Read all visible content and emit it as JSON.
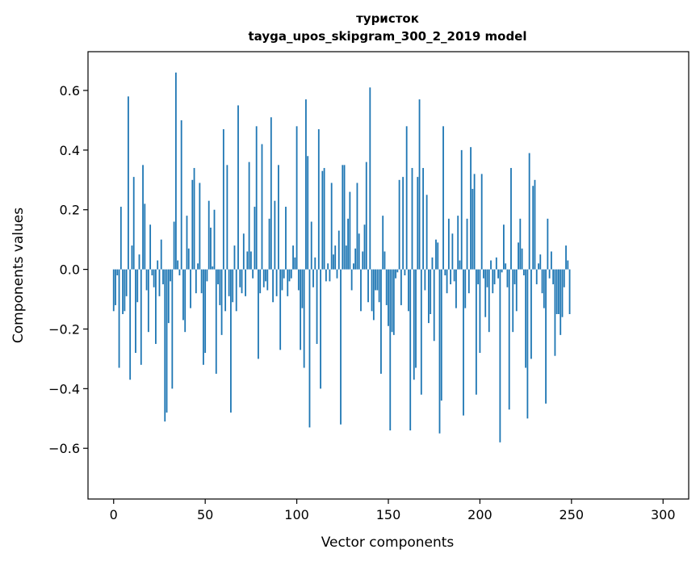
{
  "chart_data": {
    "type": "bar",
    "title_line1": "туристок",
    "title_line2": "tayga_upos_skipgram_300_2_2019 model",
    "xlabel": "Vector components",
    "ylabel": "Components values",
    "xlim": [
      -14,
      314
    ],
    "ylim": [
      -0.77,
      0.73
    ],
    "xticks": [
      0,
      50,
      100,
      150,
      200,
      250,
      300
    ],
    "xtick_labels": [
      "0",
      "50",
      "100",
      "150",
      "200",
      "250",
      "300"
    ],
    "yticks": [
      -0.6,
      -0.4,
      -0.2,
      0.0,
      0.2,
      0.4,
      0.6
    ],
    "ytick_labels": [
      "−0.6",
      "−0.4",
      "−0.2",
      "0.0",
      "0.2",
      "0.4",
      "0.6"
    ],
    "bar_color": "#1f77b4",
    "values": [
      -0.14,
      -0.12,
      -0.02,
      -0.33,
      0.21,
      -0.15,
      -0.14,
      -0.09,
      0.58,
      -0.37,
      0.08,
      0.31,
      -0.28,
      -0.11,
      0.05,
      -0.32,
      0.35,
      0.22,
      -0.07,
      -0.21,
      0.15,
      -0.02,
      -0.06,
      -0.25,
      0.03,
      -0.09,
      0.1,
      -0.05,
      -0.51,
      -0.48,
      -0.18,
      -0.04,
      -0.4,
      0.16,
      0.66,
      0.03,
      -0.02,
      0.5,
      -0.17,
      -0.21,
      0.18,
      0.07,
      -0.13,
      0.3,
      0.34,
      -0.08,
      0.02,
      0.29,
      -0.08,
      -0.32,
      -0.28,
      -0.04,
      0.23,
      0.14,
      0.01,
      0.2,
      -0.35,
      -0.05,
      -0.12,
      -0.22,
      0.47,
      -0.14,
      0.35,
      -0.09,
      -0.48,
      -0.11,
      0.08,
      -0.14,
      0.55,
      -0.06,
      -0.08,
      0.12,
      -0.09,
      0.06,
      0.36,
      0.06,
      -0.03,
      0.21,
      0.48,
      -0.3,
      -0.08,
      0.42,
      -0.06,
      -0.04,
      -0.07,
      0.17,
      0.51,
      -0.11,
      0.23,
      -0.09,
      0.35,
      -0.27,
      -0.07,
      -0.03,
      0.21,
      -0.09,
      -0.04,
      -0.03,
      0.08,
      0.04,
      0.48,
      -0.07,
      -0.27,
      -0.13,
      -0.33,
      0.57,
      0.38,
      -0.53,
      0.16,
      -0.06,
      0.04,
      -0.25,
      0.47,
      -0.4,
      0.33,
      0.34,
      -0.04,
      0.02,
      -0.04,
      0.29,
      0.05,
      0.08,
      -0.03,
      0.13,
      -0.52,
      0.35,
      0.35,
      0.08,
      0.17,
      0.26,
      -0.07,
      0.02,
      0.07,
      0.29,
      0.12,
      -0.14,
      0.06,
      0.15,
      0.36,
      -0.11,
      0.61,
      -0.14,
      -0.17,
      -0.07,
      -0.07,
      -0.11,
      -0.35,
      0.18,
      0.06,
      -0.12,
      -0.19,
      -0.54,
      -0.21,
      -0.22,
      -0.03,
      -0.01,
      0.3,
      -0.12,
      0.31,
      -0.02,
      0.48,
      -0.14,
      -0.54,
      0.34,
      -0.37,
      -0.33,
      0.31,
      0.57,
      -0.42,
      0.34,
      -0.07,
      0.25,
      -0.18,
      -0.15,
      0.04,
      -0.24,
      0.1,
      0.09,
      -0.55,
      -0.44,
      0.48,
      -0.02,
      -0.08,
      0.17,
      -0.05,
      0.12,
      -0.04,
      -0.13,
      0.18,
      0.03,
      0.4,
      -0.49,
      -0.13,
      0.17,
      -0.08,
      0.41,
      0.27,
      0.32,
      -0.42,
      -0.05,
      -0.28,
      0.32,
      -0.03,
      -0.16,
      -0.06,
      -0.21,
      0.03,
      -0.08,
      -0.05,
      0.04,
      -0.03,
      -0.58,
      -0.01,
      0.15,
      0.02,
      -0.06,
      -0.47,
      0.34,
      -0.21,
      -0.05,
      -0.14,
      0.09,
      0.17,
      0.07,
      -0.02,
      -0.33,
      -0.5,
      0.39,
      -0.3,
      0.28,
      0.3,
      -0.05,
      0.02,
      0.05,
      -0.08,
      -0.13,
      -0.45,
      0.17,
      -0.03,
      0.06,
      -0.05,
      -0.29,
      -0.15,
      -0.15,
      -0.22,
      -0.16,
      -0.06,
      0.08,
      0.03,
      -0.15
    ]
  }
}
